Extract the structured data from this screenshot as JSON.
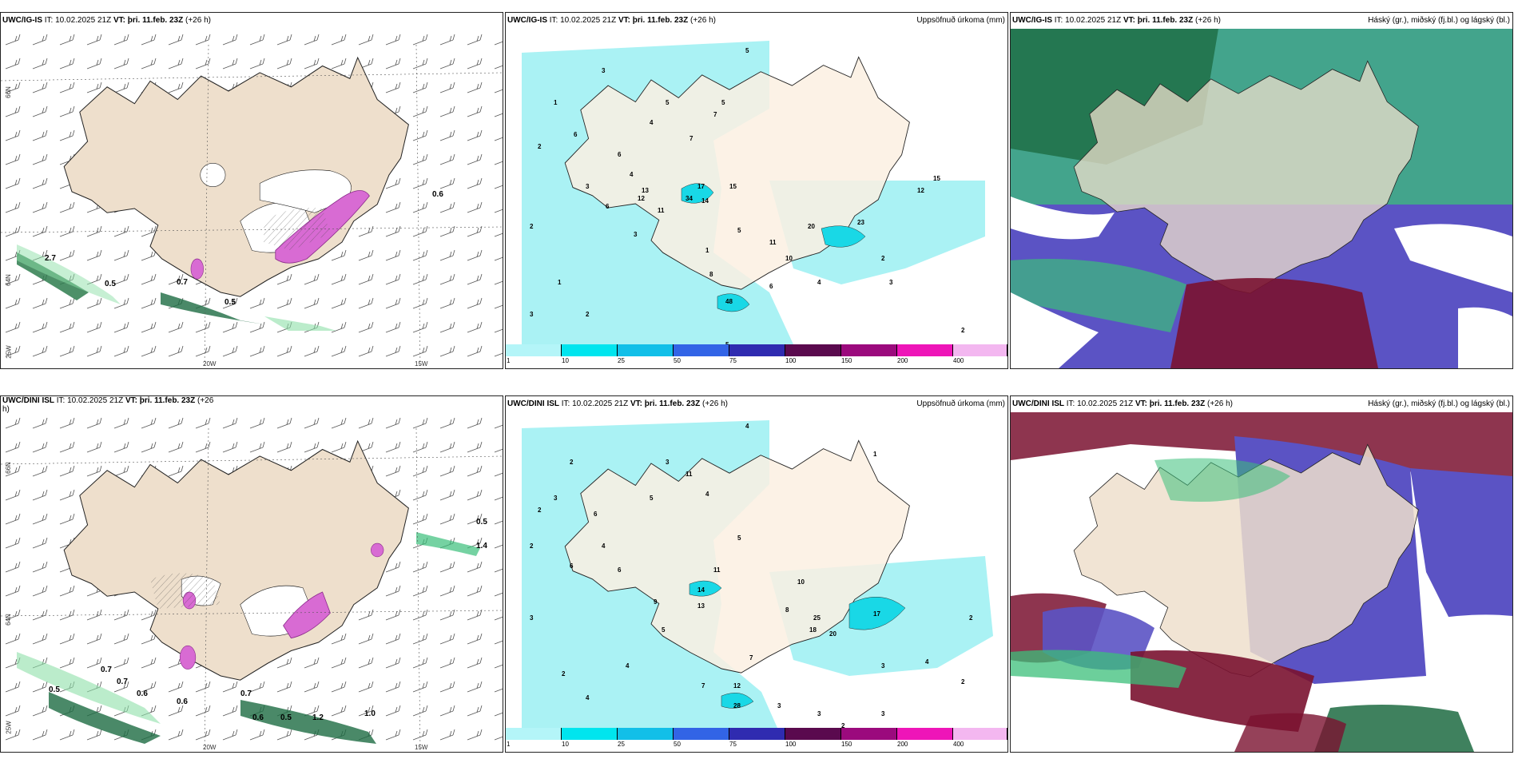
{
  "colors": {
    "land": "#eedfcc",
    "land_light": "#fcf0e2",
    "precip_light": "#aaf2f4",
    "precip_mid": "#19d8e6",
    "green": "#3bbf7a",
    "dark_green": "#1d6b42",
    "blue": "#5b53c4",
    "maroon": "#7a1230"
  },
  "panels": [
    {
      "model": "UWC/IG-IS",
      "it_label": "IT:",
      "it_value": "10.02.2025 21Z",
      "vt_label": "VT: þri. 11.feb. 23Z",
      "lead": "(+26 h)",
      "right_title": ""
    },
    {
      "model": "UWC/IG-IS",
      "it_label": "IT:",
      "it_value": "10.02.2025 21Z",
      "vt_label": "VT: þri. 11.feb. 23Z",
      "lead": "(+26 h)",
      "right_title": "Uppsöfnuð úrkoma (mm)"
    },
    {
      "model": "UWC/IG-IS",
      "it_label": "IT:",
      "it_value": "10.02.2025 21Z",
      "vt_label": "VT: þri. 11.feb. 23Z",
      "lead": "(+26 h)",
      "right_title": "Háský (gr.), miðský (fj.bl.) og lágský (bl.)"
    },
    {
      "model": "UWC/DINI ISL",
      "it_label": "IT:",
      "it_value": "10.02.2025 21Z",
      "vt_label": "VT: þri. 11.feb. 23Z",
      "lead": "(+26",
      "right_title": ""
    },
    {
      "model": "UWC/DINI ISL",
      "it_label": "IT:",
      "it_value": "10.02.2025 21Z",
      "vt_label": "VT: þri. 11.feb. 23Z",
      "lead": "(+26 h)",
      "right_title": "Uppsöfnuð úrkoma (mm)"
    },
    {
      "model": "UWC/DINI ISL",
      "it_label": "IT:",
      "it_value": "10.02.2025 21Z",
      "vt_label": "VT: þri. 11.feb. 23Z",
      "lead": "(+26 h)",
      "right_title": "Háský (gr.), miðský (fj.bl.) og lágský (bl.)"
    }
  ],
  "axis": {
    "lat_66": "66N",
    "lat_64": "64N",
    "lon_25": "25W",
    "lon_20": "20W",
    "lon_15": "15W",
    "wrap_h": "h)"
  },
  "colorbar": {
    "labels": [
      "1",
      "10",
      "25",
      "50",
      "75",
      "100",
      "150",
      "200",
      "400"
    ],
    "colors": [
      "#b4f5f8",
      "#00e5ee",
      "#12bfe8",
      "#3264e6",
      "#2f2bb0",
      "#5a0a4e",
      "#9b0a7d",
      "#ee15b8",
      "#f3b7f0"
    ]
  },
  "precip_values": {
    "top": [
      "3",
      "5",
      "1",
      "2",
      "4",
      "6",
      "7",
      "5",
      "3",
      "2",
      "1",
      "3",
      "6",
      "12",
      "11",
      "17",
      "34",
      "14",
      "15",
      "13",
      "5",
      "8",
      "10",
      "11",
      "12",
      "15",
      "20",
      "23",
      "48",
      "4",
      "3",
      "2",
      "5",
      "6",
      "7",
      "4",
      "1",
      "2",
      "3",
      "2",
      "5",
      "6"
    ],
    "bottom": [
      "4",
      "2",
      "3",
      "2",
      "5",
      "3",
      "11",
      "4",
      "6",
      "2",
      "4",
      "9",
      "13",
      "14",
      "11",
      "10",
      "25",
      "18",
      "20",
      "12",
      "28",
      "17",
      "7",
      "5",
      "3",
      "2",
      "4",
      "3",
      "6",
      "2",
      "4",
      "3",
      "8",
      "7",
      "6",
      "5",
      "2",
      "3",
      "4",
      "2",
      "1",
      "3"
    ]
  },
  "wind_values": {
    "top": [
      "0.5",
      "0.7",
      "0.6",
      "2.7",
      "0.5"
    ],
    "bottom": [
      "0.5",
      "0.7",
      "0.7",
      "0.6",
      "0.7",
      "0.5",
      "0.6",
      "1.2",
      "1.0",
      "0.6",
      "1.4",
      "0.5"
    ]
  }
}
